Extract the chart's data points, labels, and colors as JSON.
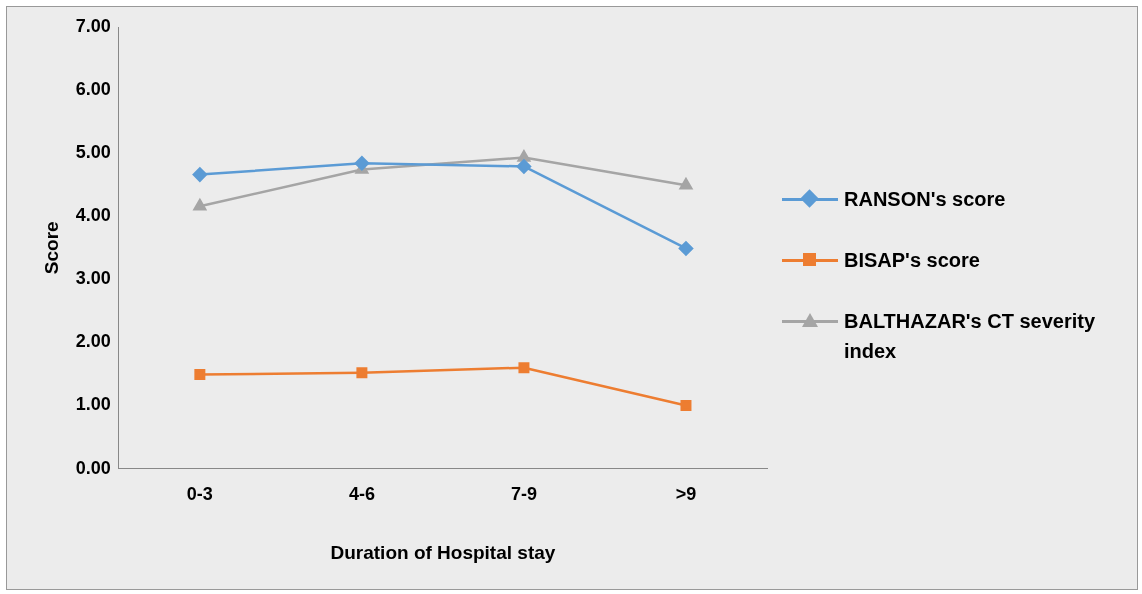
{
  "chart_data": {
    "type": "line",
    "xlabel": "Duration of Hospital stay",
    "ylabel": "Score",
    "categories": [
      "0-3",
      "4-6",
      "7-9",
      ">9"
    ],
    "series": [
      {
        "name": "RANSON's score",
        "color": "#5b9bd5",
        "marker": "diamond",
        "values": [
          4.66,
          4.84,
          4.79,
          3.49
        ]
      },
      {
        "name": "BISAP's score",
        "color": "#ed7d31",
        "marker": "square",
        "values": [
          1.49,
          1.52,
          1.6,
          1.0
        ]
      },
      {
        "name": "BALTHAZAR's CT severity index",
        "color": "#a5a5a5",
        "marker": "triangle",
        "values": [
          4.16,
          4.74,
          4.93,
          4.49
        ]
      }
    ],
    "ylim": [
      0,
      7
    ],
    "yticks": [
      {
        "value": 0,
        "label": "0.00"
      },
      {
        "value": 1,
        "label": "1.00"
      },
      {
        "value": 2,
        "label": "2.00"
      },
      {
        "value": 3,
        "label": "3.00"
      },
      {
        "value": 4,
        "label": "4.00"
      },
      {
        "value": 5,
        "label": "5.00"
      },
      {
        "value": 6,
        "label": "6.00"
      },
      {
        "value": 7,
        "label": "7.00"
      }
    ],
    "grid": false,
    "legend": "right"
  }
}
